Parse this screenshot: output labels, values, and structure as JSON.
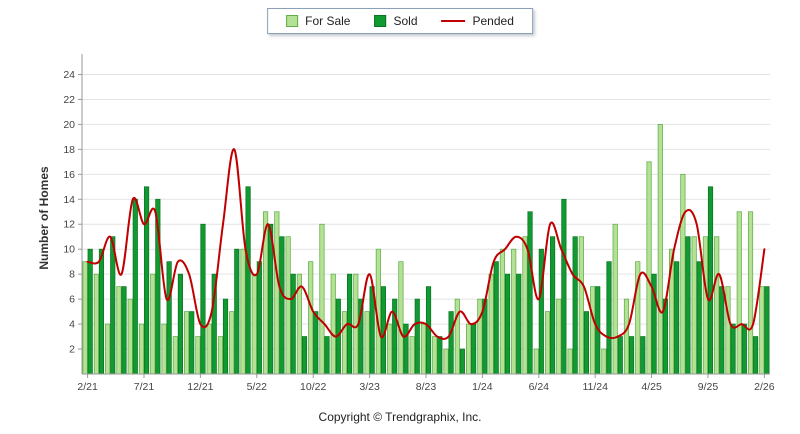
{
  "legend": {
    "items": [
      {
        "label": "For Sale",
        "swatch": "for-sale-square"
      },
      {
        "label": "Sold",
        "swatch": "sold-square"
      },
      {
        "label": "Pended",
        "swatch": "pended-line"
      }
    ]
  },
  "axes": {
    "y_label": "Number of Homes"
  },
  "footer": {
    "text": "Copyright © Trendgraphix, Inc."
  },
  "colors": {
    "for_sale_fill": "#b5e195",
    "for_sale_border": "#5fae4a",
    "sold_fill": "#129a32",
    "sold_border": "#0b7423",
    "pended_line": "#c00000",
    "grid": "#e3e3e3",
    "axis": "#9a9a9a",
    "tick_text": "#444444"
  },
  "chart_data": {
    "type": "bar",
    "title": "",
    "xlabel": "",
    "ylabel": "Number of Homes",
    "ylim": [
      0,
      25
    ],
    "yticks": [
      2,
      4,
      6,
      8,
      10,
      12,
      14,
      16,
      18,
      20,
      22,
      24
    ],
    "grid": "horizontal",
    "legend_position": "top-center",
    "categories": [
      "2/21",
      "3/21",
      "4/21",
      "5/21",
      "6/21",
      "7/21",
      "8/21",
      "9/21",
      "10/21",
      "11/21",
      "12/21",
      "1/22",
      "2/22",
      "3/22",
      "4/22",
      "5/22",
      "6/22",
      "7/22",
      "8/22",
      "9/22",
      "10/22",
      "11/22",
      "12/22",
      "1/23",
      "2/23",
      "3/23",
      "4/23",
      "5/23",
      "6/23",
      "7/23",
      "8/23",
      "9/23",
      "10/23",
      "11/23",
      "12/23",
      "1/24",
      "2/24",
      "3/24",
      "4/24",
      "5/24",
      "6/24",
      "7/24",
      "8/24",
      "9/24",
      "10/24",
      "11/24",
      "12/24",
      "1/25",
      "2/25",
      "3/25",
      "4/25",
      "5/25",
      "6/25",
      "7/25",
      "8/25",
      "9/25",
      "10/25",
      "11/25",
      "12/25",
      "1/26",
      "2/26"
    ],
    "x_tick_labels": [
      "2/21",
      "7/21",
      "12/21",
      "5/22",
      "10/22",
      "3/23",
      "8/23",
      "1/24",
      "6/24",
      "11/24",
      "4/25",
      "9/25",
      "2/26"
    ],
    "x_tick_every": 5,
    "series": [
      {
        "name": "For Sale",
        "type": "bar",
        "color": "#b5e195",
        "values": [
          9,
          8,
          4,
          7,
          6,
          4,
          8,
          4,
          3,
          5,
          3,
          4,
          3,
          5,
          10,
          8,
          13,
          13,
          11,
          8,
          9,
          12,
          8,
          5,
          8,
          5,
          10,
          4,
          9,
          3,
          4,
          3,
          2,
          6,
          4,
          6,
          8,
          10,
          10,
          11,
          2,
          5,
          6,
          2,
          11,
          7,
          2,
          12,
          6,
          9,
          17,
          20,
          10,
          16,
          11,
          11,
          11,
          7,
          13,
          13,
          7
        ]
      },
      {
        "name": "Sold",
        "type": "bar",
        "color": "#129a32",
        "values": [
          10,
          10,
          11,
          7,
          14,
          15,
          14,
          9,
          8,
          5,
          12,
          8,
          6,
          10,
          15,
          9,
          12,
          11,
          8,
          3,
          5,
          3,
          6,
          8,
          6,
          7,
          7,
          6,
          4,
          6,
          7,
          3,
          5,
          2,
          4,
          6,
          9,
          8,
          8,
          13,
          10,
          11,
          14,
          11,
          5,
          7,
          9,
          3,
          3,
          3,
          8,
          6,
          9,
          11,
          9,
          15,
          7,
          4,
          4,
          3,
          7
        ]
      },
      {
        "name": "Pended",
        "type": "line",
        "color": "#c00000",
        "values": [
          9,
          9,
          11,
          8,
          14,
          12,
          13,
          6,
          9,
          8,
          4,
          5,
          12,
          18,
          10,
          8,
          12,
          7,
          6,
          7,
          5,
          4,
          3,
          4,
          4,
          8,
          3,
          5,
          3,
          4,
          4,
          3,
          3,
          5,
          4,
          5,
          9,
          10,
          11,
          10,
          6,
          12,
          10,
          8,
          7,
          4,
          3,
          3,
          4,
          8,
          7,
          5,
          10,
          13,
          12,
          6,
          8,
          4,
          4,
          4,
          10
        ]
      }
    ]
  }
}
